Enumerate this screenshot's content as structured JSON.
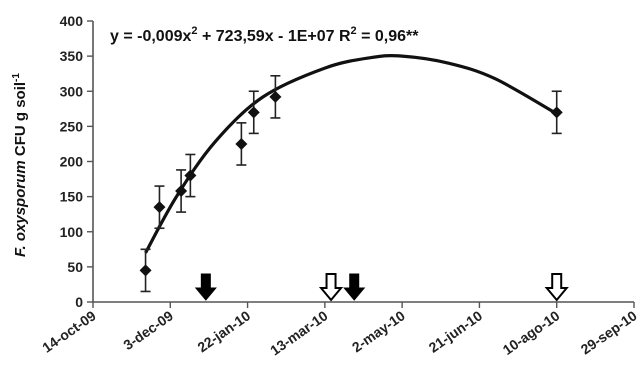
{
  "chart_data": {
    "type": "scatter",
    "ylabel_italic": "F. oxysporum",
    "ylabel_rest": " CFU g soil",
    "ylabel_sup": "-1",
    "equation": {
      "main": "y = -0,009x",
      "sup": "2",
      "rest": " + 723,59x - 1E+07 R",
      "sup2": "2",
      "tail": " = 0,96**"
    },
    "xlim": [
      "2009-10-14",
      "2010-09-29"
    ],
    "x_ticks": [
      {
        "date": "2009-10-14",
        "label": "14-oct-09"
      },
      {
        "date": "2009-12-03",
        "label": "3-dec-09"
      },
      {
        "date": "2010-01-22",
        "label": "22-jan-10"
      },
      {
        "date": "2010-03-13",
        "label": "13-mar-10"
      },
      {
        "date": "2010-05-02",
        "label": "2-may-10"
      },
      {
        "date": "2010-06-21",
        "label": "21-jun-10"
      },
      {
        "date": "2010-08-10",
        "label": "10-ago-10"
      },
      {
        "date": "2010-09-29",
        "label": "29-sep-10"
      }
    ],
    "ylim": [
      0,
      400
    ],
    "y_ticks": [
      0,
      50,
      100,
      150,
      200,
      250,
      300,
      350,
      400
    ],
    "points": [
      {
        "date": "2009-11-17",
        "y": 45,
        "err": 30
      },
      {
        "date": "2009-11-26",
        "y": 135,
        "err": 30
      },
      {
        "date": "2009-12-10",
        "y": 158,
        "err": 30
      },
      {
        "date": "2009-12-16",
        "y": 180,
        "err": 30
      },
      {
        "date": "2010-01-18",
        "y": 225,
        "err": 30
      },
      {
        "date": "2010-01-26",
        "y": 270,
        "err": 30
      },
      {
        "date": "2010-02-09",
        "y": 292,
        "err": 30
      },
      {
        "date": "2010-08-10",
        "y": 270,
        "err": 30
      }
    ],
    "fit_curve": [
      {
        "date": "2009-11-17",
        "y": 70
      },
      {
        "date": "2009-12-07",
        "y": 150
      },
      {
        "date": "2010-01-01",
        "y": 228
      },
      {
        "date": "2010-02-01",
        "y": 292
      },
      {
        "date": "2010-03-13",
        "y": 333
      },
      {
        "date": "2010-04-12",
        "y": 348
      },
      {
        "date": "2010-05-02",
        "y": 350
      },
      {
        "date": "2010-06-01",
        "y": 340
      },
      {
        "date": "2010-07-01",
        "y": 318
      },
      {
        "date": "2010-08-10",
        "y": 268
      }
    ],
    "arrows": [
      {
        "date": "2009-12-26",
        "style": "filled"
      },
      {
        "date": "2010-03-17",
        "style": "open"
      },
      {
        "date": "2010-04-01",
        "style": "filled"
      },
      {
        "date": "2010-08-10",
        "style": "open"
      }
    ],
    "grid": false,
    "legend": "none"
  }
}
